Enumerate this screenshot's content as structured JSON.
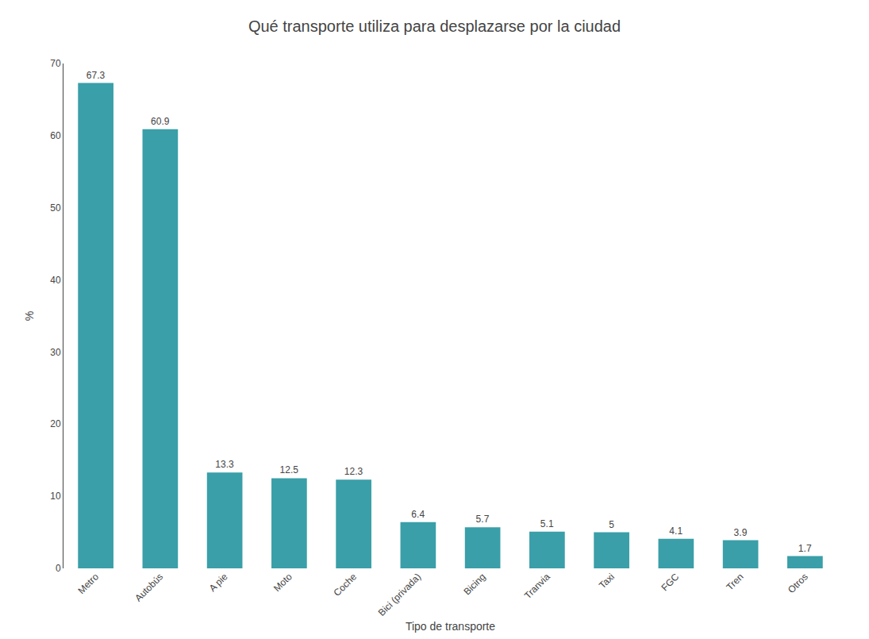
{
  "chart_data": {
    "type": "bar",
    "title": "Qué transporte utiliza para desplazarse por la ciudad",
    "xlabel": "Tipo de transporte",
    "ylabel": "%",
    "categories": [
      "Metro",
      "Autobús",
      "A pie",
      "Moto",
      "Coche",
      "Bici (privada)",
      "Bicing",
      "Tranvia",
      "Taxi",
      "FGC",
      "Tren",
      "Otros"
    ],
    "values": [
      67.3,
      60.9,
      13.3,
      12.5,
      12.3,
      6.4,
      5.7,
      5.1,
      5,
      4.1,
      3.9,
      1.7
    ],
    "color": "#3a9fa8",
    "ylim": [
      0,
      70
    ],
    "yticks": [
      0,
      10,
      20,
      30,
      40,
      50,
      60,
      70
    ],
    "grid": false,
    "data_labels": true
  }
}
